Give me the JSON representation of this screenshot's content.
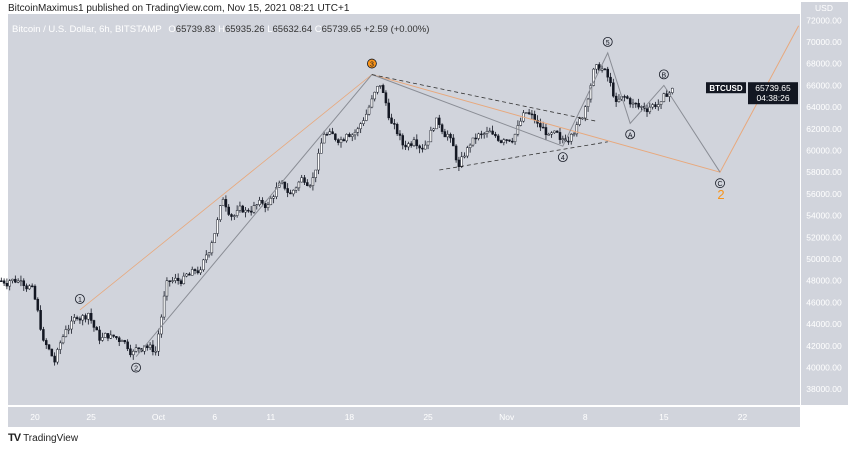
{
  "header": {
    "published": "BitcoinMaximus1 published on TradingView.com, Nov 15, 2021 08:21 UTC+1"
  },
  "legend": {
    "symbol": "Bitcoin / U.S. Dollar, 6h, BITSTAMP",
    "o_key": "O",
    "o": "65739.83",
    "h_key": "H",
    "h": "65935.26",
    "l_key": "L",
    "l": "65632.64",
    "c_key": "C",
    "c": "65739.65",
    "change": "+2.59 (+0.00%)"
  },
  "price_label": {
    "ticker": "BTCUSD",
    "price": "65739.65",
    "countdown": "04:38:26"
  },
  "footer": {
    "brand": "TradingView"
  },
  "colors": {
    "background": "#d1d4dc",
    "bull": "#ffffff",
    "bear": "#131722",
    "wave_line": "#8a8d95",
    "projection_line": "#e8a87c",
    "wave2_label": "#f7931a"
  },
  "chart_data": {
    "type": "candlestick",
    "currency_label": "USD",
    "ylim": [
      37000,
      72500
    ],
    "y_ticks": [
      38000,
      40000,
      42000,
      44000,
      46000,
      48000,
      50000,
      52000,
      54000,
      56000,
      58000,
      60000,
      62000,
      64000,
      66000,
      68000,
      70000,
      72000
    ],
    "x_ticks": [
      {
        "label": "20",
        "date": "2021-09-20"
      },
      {
        "label": "25",
        "date": "2021-09-25"
      },
      {
        "label": "Oct",
        "date": "2021-10-01"
      },
      {
        "label": "6",
        "date": "2021-10-06"
      },
      {
        "label": "11",
        "date": "2021-10-11"
      },
      {
        "label": "18",
        "date": "2021-10-18"
      },
      {
        "label": "25",
        "date": "2021-10-25"
      },
      {
        "label": "Nov",
        "date": "2021-11-01"
      },
      {
        "label": "8",
        "date": "2021-11-08"
      },
      {
        "label": "15",
        "date": "2021-11-15"
      },
      {
        "label": "22",
        "date": "2021-11-22"
      }
    ],
    "start_date": "2021-09-17",
    "daily_close": [
      48000,
      48000,
      47500,
      42500,
      40500,
      43500,
      44500,
      45000,
      42500,
      43000,
      42500,
      41500,
      42000,
      41500,
      48000,
      48000,
      48500,
      49000,
      51500,
      55500,
      54000,
      54500,
      55000,
      55000,
      57000,
      56000,
      57500,
      57500,
      61500,
      61000,
      61500,
      62000,
      64000,
      66000,
      62500,
      60500,
      61000,
      60500,
      63000,
      61500,
      58500,
      60500,
      61500,
      61500,
      61000,
      61500,
      63500,
      62500,
      61500,
      61000,
      61500,
      63000,
      67500,
      67500,
      64500,
      64800,
      64000,
      64000,
      64500,
      65740
    ],
    "waves": [
      {
        "label": "1",
        "date": "2021-09-24",
        "price": 45300,
        "color": "#131722"
      },
      {
        "label": "2",
        "date": "2021-09-29",
        "price": 41000,
        "color": "#131722"
      },
      {
        "label": "3",
        "date": "2021-10-20",
        "price": 67000,
        "color": "#f7931a"
      },
      {
        "label": "4",
        "date": "2021-11-06",
        "price": 60400,
        "color": "#131722"
      },
      {
        "label": "5",
        "date": "2021-11-10",
        "price": 69000,
        "color": "#131722"
      },
      {
        "label": "A",
        "date": "2021-11-12",
        "price": 62500,
        "color": "#131722"
      },
      {
        "label": "B",
        "date": "2021-11-15",
        "price": 66000,
        "color": "#131722"
      },
      {
        "label": "C",
        "date": "2021-11-20",
        "price": 58000,
        "color": "#131722"
      }
    ],
    "wave_degree_label": "2",
    "projection_end": {
      "date": "2021-11-27",
      "price": 71500
    },
    "triangle": {
      "upper": [
        {
          "date": "2021-10-20",
          "price": 67000
        },
        {
          "date": "2021-11-09",
          "price": 62700
        }
      ],
      "lower": [
        {
          "date": "2021-10-26",
          "price": 58200
        },
        {
          "date": "2021-11-10",
          "price": 60800
        }
      ]
    }
  }
}
